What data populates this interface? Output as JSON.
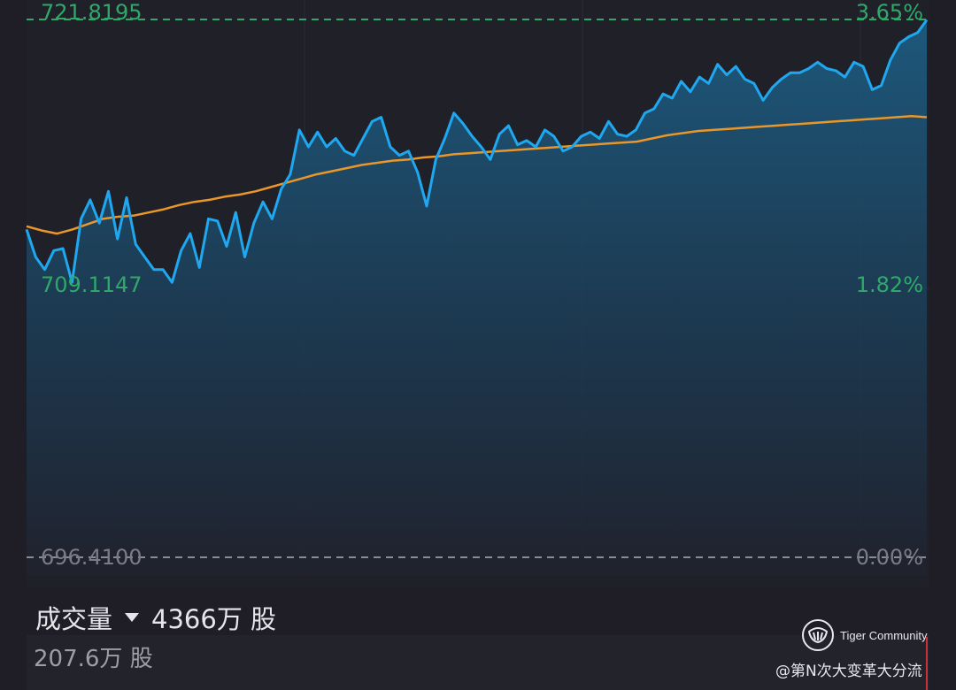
{
  "price_axis": {
    "high": "721.8195",
    "mid": "709.1147",
    "base": "696.4100"
  },
  "percent_axis": {
    "high": "3.65%",
    "mid": "1.82%",
    "base": "0.00%"
  },
  "volume": {
    "label": "成交量",
    "total": "4366万 股",
    "current": "207.6万 股"
  },
  "watermark": {
    "brand": "Tiger Community",
    "user": "@第N次大变革大分流"
  },
  "colors": {
    "price_line": "#1fa8f0",
    "avg_line": "#e9962a",
    "axis_green": "#2fa96a",
    "axis_gray": "#7b7c86",
    "background": "#1f1e26"
  },
  "chart_data": {
    "type": "line",
    "ylim": [
      696.41,
      721.8195
    ],
    "y_ticks": [
      696.41,
      709.1147,
      721.8195
    ],
    "percent_ticks": [
      "0.00%",
      "1.82%",
      "3.65%"
    ],
    "grid": true,
    "series": [
      {
        "values": [
          711.45,
          713.4,
          711.2,
          710.6,
          710.0,
          710.0,
          709.4,
          710.9,
          711.7,
          710.1,
          712.4,
          712.3,
          711.1,
          712.7,
          710.6,
          712.2,
          713.2,
          712.4,
          713.8,
          714.5,
          716.6,
          715.8,
          716.5,
          715.8,
          716.2,
          715.6,
          715.4,
          716.2,
          717.0,
          717.2,
          715.8,
          715.4,
          715.6,
          714.6,
          713.0,
          715.2,
          716.2,
          717.4,
          716.9,
          716.3,
          715.8,
          715.2,
          716.4,
          716.8,
          715.9,
          716.1,
          715.8,
          716.6,
          716.3,
          715.6,
          715.8,
          716.3,
          716.5,
          716.2,
          717.0,
          716.4,
          716.3,
          716.6,
          717.4,
          717.6,
          718.3,
          718.1,
          718.9,
          718.4,
          719.1,
          718.8,
          719.7,
          719.2,
          719.6,
          719.0,
          718.8,
          718.0,
          718.6,
          719.0,
          719.3,
          719.3,
          719.5,
          719.8,
          719.5,
          719.4,
          719.1,
          719.8,
          719.6,
          718.5,
          718.7,
          719.9,
          720.7,
          721.0,
          721.2,
          721.8
        ],
        "x_fraction_start": 0.1,
        "x_fraction_end": 1.0,
        "opening": [
          711.9,
          710.6,
          710.0,
          710.9,
          711.0,
          709.4,
          712.4,
          713.3,
          712.2,
          713.7
        ]
      },
      {
        "values": [
          712.05,
          711.85,
          711.7,
          711.9,
          712.15,
          712.4,
          712.5,
          712.55,
          712.7,
          712.85,
          713.05,
          713.2,
          713.3,
          713.45,
          713.55,
          713.7,
          713.9,
          714.1,
          714.3,
          714.5,
          714.65,
          714.8,
          714.95,
          715.05,
          715.15,
          715.2,
          715.3,
          715.35,
          715.45,
          715.5,
          715.55,
          715.6,
          715.65,
          715.7,
          715.75,
          715.8,
          715.85,
          715.9,
          715.95,
          716.0,
          716.05,
          716.2,
          716.35,
          716.45,
          716.55,
          716.6,
          716.65,
          716.7,
          716.75,
          716.8,
          716.85,
          716.9,
          716.95,
          717.0,
          717.05,
          717.1,
          717.15,
          717.2,
          717.25,
          717.2
        ]
      }
    ]
  }
}
